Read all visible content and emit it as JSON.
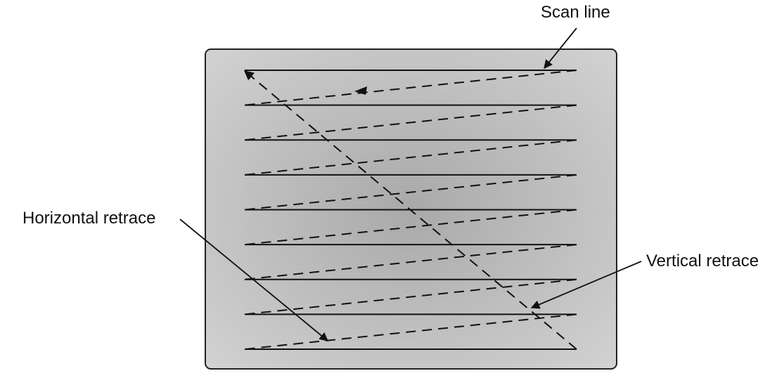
{
  "labels": {
    "scan_line": "Scan line",
    "horizontal_retrace": "Horizontal retrace",
    "vertical_retrace": "Vertical retrace"
  },
  "raster": {
    "scan_line_count": 9
  },
  "colors": {
    "screen_fill": "#c9c9c9",
    "screen_border": "#222222",
    "line": "#111111",
    "text": "#111111"
  }
}
